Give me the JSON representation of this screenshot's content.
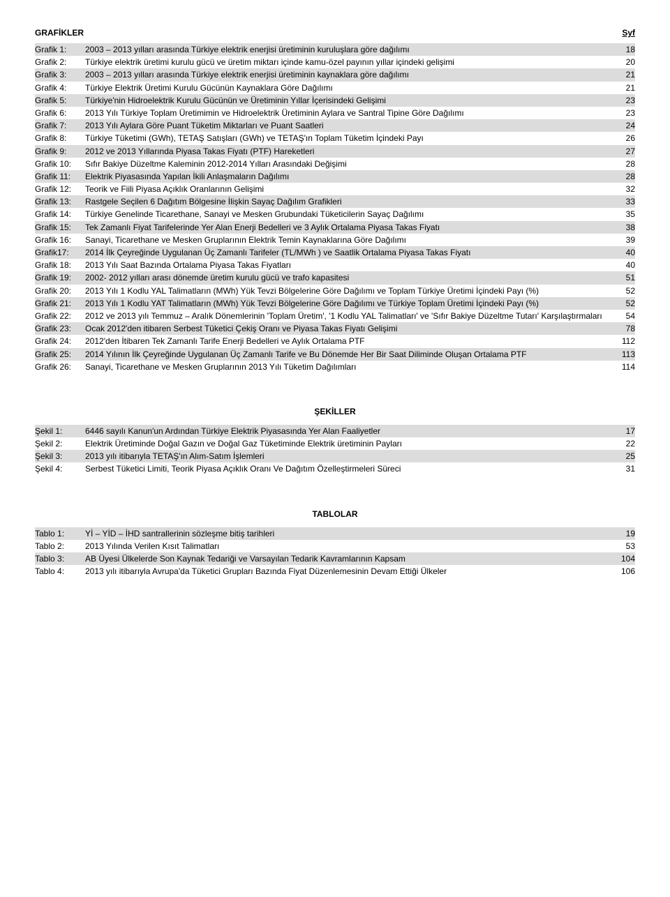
{
  "headers": {
    "left": "GRAFİKLER",
    "right": "Syf"
  },
  "sections": {
    "grafikler": {
      "title": "GRAFİKLER",
      "entries": [
        {
          "label": "Grafik 1:",
          "text": "2003 – 2013 yılları arasında Türkiye elektrik enerjisi üretiminin kuruluşlara göre dağılımı",
          "page": "18",
          "shaded": true
        },
        {
          "label": "Grafik 2:",
          "text": "Türkiye elektrik üretimi kurulu gücü ve üretim miktarı içinde kamu-özel payının yıllar içindeki gelişimi",
          "page": "20",
          "shaded": false
        },
        {
          "label": "Grafik 3:",
          "text": "2003 – 2013 yılları arasında Türkiye elektrik enerjisi üretiminin kaynaklara göre dağılımı",
          "page": "21",
          "shaded": true
        },
        {
          "label": "Grafik 4:",
          "text": "Türkiye Elektrik Üretimi Kurulu Gücünün Kaynaklara Göre Dağılımı",
          "page": "21",
          "shaded": false
        },
        {
          "label": "Grafik 5:",
          "text": "Türkiye'nin Hidroelektrik Kurulu Gücünün ve Üretiminin Yıllar İçerisindeki Gelişimi",
          "page": "23",
          "shaded": true
        },
        {
          "label": "Grafik 6:",
          "text": "2013 Yılı Türkiye Toplam Üretimimin ve Hidroelektrik Üretiminin Aylara ve Santral Tipine Göre Dağılımı",
          "page": "23",
          "shaded": false
        },
        {
          "label": "Grafik 7:",
          "text": "2013 Yılı Aylara Göre Puant Tüketim Miktarları ve Puant Saatleri",
          "page": "24",
          "shaded": true
        },
        {
          "label": "Grafik 8:",
          "text": "Türkiye Tüketimi (GWh), TETAŞ Satışları (GWh) ve TETAŞ'ın Toplam Tüketim İçindeki Payı",
          "page": "26",
          "shaded": false
        },
        {
          "label": "Grafik 9:",
          "text": "2012 ve 2013 Yıllarında Piyasa Takas Fiyatı (PTF) Hareketleri",
          "page": "27",
          "shaded": true
        },
        {
          "label": "Grafik 10:",
          "text": "Sıfır Bakiye Düzeltme Kaleminin 2012-2014 Yılları Arasındaki Değişimi",
          "page": "28",
          "shaded": false
        },
        {
          "label": "Grafik 11:",
          "text": "Elektrik Piyasasında Yapılan İkili Anlaşmaların Dağılımı",
          "page": "28",
          "shaded": true
        },
        {
          "label": "Grafik 12:",
          "text": "Teorik ve Fiili Piyasa Açıklık Oranlarının Gelişimi",
          "page": "32",
          "shaded": false
        },
        {
          "label": "Grafik 13:",
          "text": "Rastgele Seçilen 6 Dağıtım Bölgesine İlişkin Sayaç Dağılım Grafikleri",
          "page": "33",
          "shaded": true
        },
        {
          "label": "Grafik 14:",
          "text": "Türkiye Genelinde Ticarethane, Sanayi ve Mesken Grubundaki Tüketicilerin Sayaç Dağılımı",
          "page": "35",
          "shaded": false
        },
        {
          "label": "Grafik 15:",
          "text": "Tek Zamanlı Fiyat Tarifelerinde Yer Alan Enerji Bedelleri ve 3 Aylık Ortalama Piyasa Takas Fiyatı",
          "page": "38",
          "shaded": true
        },
        {
          "label": "Grafik 16:",
          "text": "Sanayi, Ticarethane ve Mesken Gruplarının Elektrik Temin Kaynaklarına Göre Dağılımı",
          "page": "39",
          "shaded": false
        },
        {
          "label": "Grafik17:",
          "text": "2014 İlk Çeyreğinde Uygulanan Üç Zamanlı Tarifeler (TL/MWh ) ve Saatlik Ortalama Piyasa Takas Fiyatı",
          "page": "40",
          "shaded": true
        },
        {
          "label": "Grafik 18:",
          "text": "2013 Yılı Saat Bazında Ortalama Piyasa Takas Fiyatları",
          "page": "40",
          "shaded": false
        },
        {
          "label": "Grafik 19:",
          "text": "2002- 2012 yılları arası dönemde üretim kurulu gücü ve trafo kapasitesi",
          "page": "51",
          "shaded": true
        },
        {
          "label": "Grafik 20:",
          "text": "2013 Yılı 1 Kodlu YAL Talimatların (MWh) Yük Tevzi Bölgelerine Göre Dağılımı ve Toplam Türkiye Üretimi İçindeki Payı (%)",
          "page": "52",
          "shaded": false
        },
        {
          "label": "Grafik 21:",
          "text": "2013 Yılı 1 Kodlu YAT Talimatların (MWh) Yük Tevzi Bölgelerine Göre Dağılımı ve Türkiye Toplam Üretimi İçindeki Payı (%)",
          "page": "52",
          "shaded": true
        },
        {
          "label": "Grafik 22:",
          "text": "2012 ve 2013 yılı Temmuz – Aralık Dönemlerinin 'Toplam Üretim', '1 Kodlu YAL Talimatları' ve 'Sıfır Bakiye Düzeltme Tutarı' Karşılaştırmaları",
          "page": "54",
          "shaded": false
        },
        {
          "label": "Grafik 23:",
          "text": "Ocak 2012'den itibaren Serbest Tüketici Çekiş Oranı ve Piyasa Takas Fiyatı Gelişimi",
          "page": "78",
          "shaded": true
        },
        {
          "label": "Grafik 24:",
          "text": "2012'den İtibaren Tek Zamanlı Tarife Enerji Bedelleri ve Aylık Ortalama PTF",
          "page": "112",
          "shaded": false
        },
        {
          "label": "Grafik 25:",
          "text": "2014 Yılının İlk Çeyreğinde Uygulanan Üç Zamanlı Tarife ve Bu Dönemde Her Bir Saat Diliminde Oluşan Ortalama PTF",
          "page": "113",
          "shaded": true
        },
        {
          "label": "Grafik 26:",
          "text": "Sanayi, Ticarethane ve Mesken Gruplarının 2013 Yılı Tüketim Dağılımları",
          "page": "114",
          "shaded": false
        }
      ]
    },
    "sekiller": {
      "title": "ŞEKİLLER",
      "entries": [
        {
          "label": "Şekil 1:",
          "text": "6446 sayılı Kanun'un Ardından Türkiye Elektrik Piyasasında Yer Alan Faaliyetler",
          "page": "17",
          "shaded": true
        },
        {
          "label": "Şekil 2:",
          "text": "Elektrik Üretiminde Doğal Gazın ve Doğal Gaz Tüketiminde Elektrik üretiminin Payları",
          "page": "22",
          "shaded": false
        },
        {
          "label": "Şekil 3:",
          "text": "2013 yılı itibarıyla TETAŞ'ın Alım-Satım İşlemleri",
          "page": "25",
          "shaded": true
        },
        {
          "label": "Şekil 4:",
          "text": "Serbest Tüketici Limiti, Teorik Piyasa Açıklık Oranı Ve Dağıtım Özelleştirmeleri Süreci",
          "page": "31",
          "shaded": false
        }
      ]
    },
    "tablolar": {
      "title": "TABLOLAR",
      "entries": [
        {
          "label": "Tablo 1:",
          "text": "Yİ – YİD – İHD santrallerinin sözleşme bitiş tarihleri",
          "page": "19",
          "shaded": true
        },
        {
          "label": "Tablo 2:",
          "text": "2013 Yılında Verilen Kısıt Talimatları",
          "page": "53",
          "shaded": false
        },
        {
          "label": "Tablo 3:",
          "text": "AB Üyesi Ülkelerde Son Kaynak Tedariği ve Varsayılan Tedarik Kavramlarının Kapsam",
          "page": "104",
          "shaded": true
        },
        {
          "label": "Tablo 4:",
          "text": "2013 yılı itibarıyla Avrupa'da Tüketici Grupları Bazında Fiyat Düzenlemesinin Devam Ettiği Ülkeler",
          "page": "106",
          "shaded": false
        }
      ]
    }
  }
}
